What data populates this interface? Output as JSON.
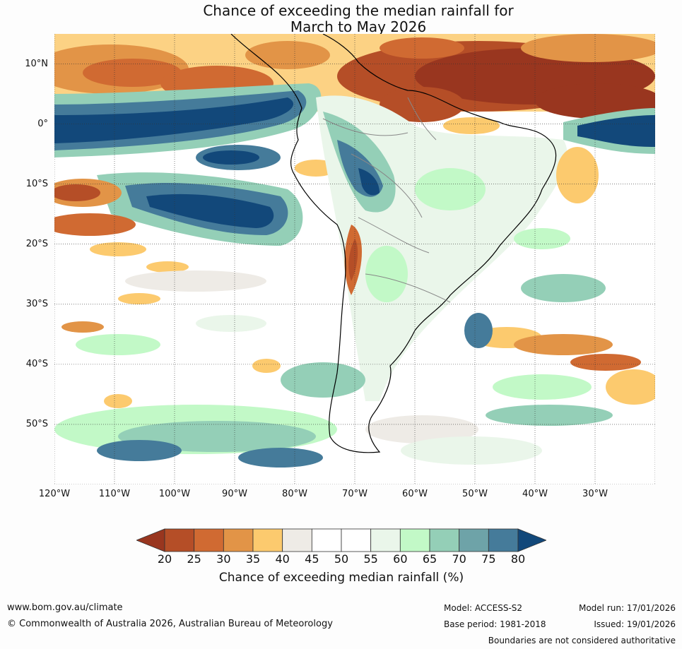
{
  "title": {
    "line1": "Chance of exceeding the median rainfall for",
    "line2": "March to May 2026"
  },
  "map": {
    "lat_labels": [
      "10°N",
      "0°",
      "10°S",
      "20°S",
      "30°S",
      "40°S",
      "50°S"
    ],
    "lon_labels": [
      "120°W",
      "110°W",
      "100°W",
      "90°W",
      "80°W",
      "70°W",
      "60°W",
      "50°W",
      "40°W",
      "30°W"
    ],
    "lon_range": [
      -120,
      -20
    ],
    "lat_range": [
      -60,
      15
    ]
  },
  "colorbar": {
    "title": "Chance of exceeding median rainfall (%)",
    "ticks": [
      "20",
      "25",
      "30",
      "35",
      "40",
      "45",
      "50",
      "55",
      "60",
      "65",
      "70",
      "75",
      "80"
    ],
    "colors": [
      "#99361f",
      "#b54e27",
      "#d06a32",
      "#e29447",
      "#fcca6e",
      "#eeebe6",
      "#ffffff",
      "#ffffff",
      "#eaf6ea",
      "#c2f9c7",
      "#94cfb7",
      "#6ea3a8",
      "#457b9a",
      "#1a4a7e"
    ],
    "under_color": "#99361f",
    "over_color": "#12487a"
  },
  "footer": {
    "website": "www.bom.gov.au/climate",
    "copyright": "© Commonwealth of Australia 2026, Australian Bureau of Meteorology",
    "model": "Model: ACCESS-S2",
    "base_period": "Base period: 1981-2018",
    "model_run": "Model run: 17/01/2026",
    "issued": "Issued: 19/01/2026",
    "disclaimer": "Boundaries are not considered authoritative"
  }
}
